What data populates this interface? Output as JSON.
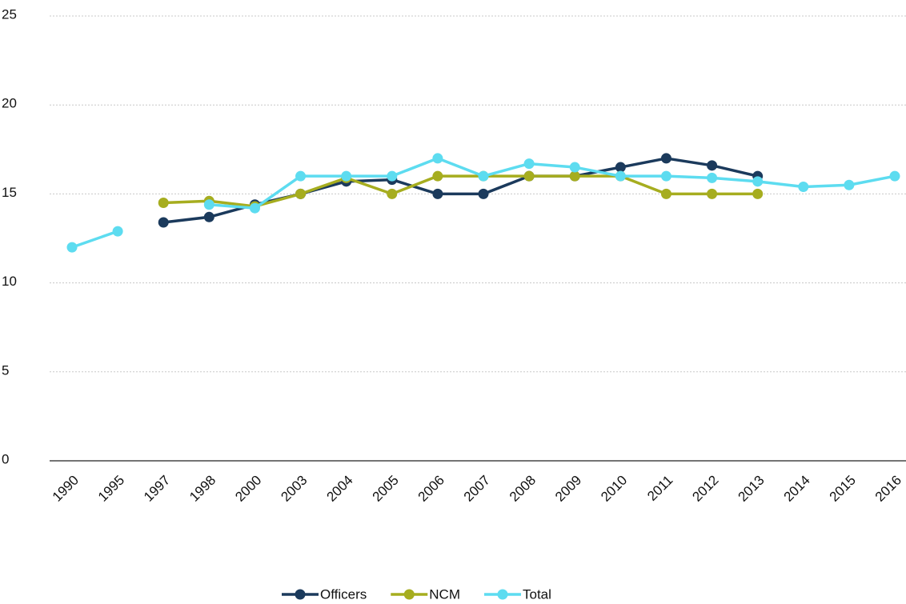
{
  "chart_data": {
    "type": "line",
    "categories": [
      "1990",
      "1995",
      "1997",
      "1998",
      "2000",
      "2003",
      "2004",
      "2005",
      "2006",
      "2007",
      "2008",
      "2009",
      "2010",
      "2011",
      "2012",
      "2013",
      "2014",
      "2015",
      "2016"
    ],
    "series": [
      {
        "name": "Officers",
        "color": "#1b3a5c",
        "values": [
          null,
          null,
          13.4,
          13.7,
          14.4,
          15,
          15.7,
          15.8,
          15,
          15,
          16,
          16,
          16.5,
          17,
          16.6,
          16,
          null,
          null,
          null
        ]
      },
      {
        "name": "NCM",
        "color": "#a6ad1f",
        "values": [
          null,
          null,
          14.5,
          14.6,
          14.3,
          15,
          15.9,
          15,
          16,
          16,
          16,
          16,
          16,
          15,
          15,
          15,
          null,
          null,
          null
        ]
      },
      {
        "name": "Total",
        "color": "#5ddcf0",
        "values": [
          12,
          12.9,
          null,
          14.4,
          14.2,
          16,
          16,
          16,
          17,
          16,
          16.7,
          16.5,
          16,
          16,
          15.9,
          15.7,
          15.4,
          15.5,
          16
        ]
      }
    ],
    "ylim": [
      0,
      25
    ],
    "yticks": [
      0,
      5,
      10,
      15,
      20,
      25
    ],
    "grid": true,
    "legend": "bottom"
  }
}
